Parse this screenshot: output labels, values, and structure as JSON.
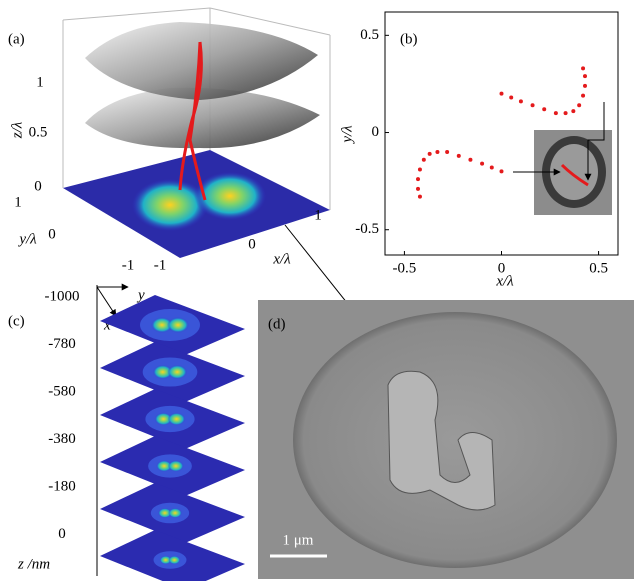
{
  "panel_a": {
    "label": "(a)",
    "zticks": [
      0,
      0.5,
      1
    ],
    "yticks": [
      1,
      0,
      -1
    ],
    "xticks": [
      -1,
      0,
      1
    ],
    "zlabel": "z/λ",
    "ylabel": "y/λ",
    "xlabel": "x/λ"
  },
  "chart_data": {
    "type": "scatter",
    "label": "(b)",
    "xlabel": "x/λ",
    "ylabel": "y/λ",
    "color": "#e41a1c",
    "xlim": [
      -0.6,
      0.6
    ],
    "ylim": [
      -0.63,
      0.62
    ],
    "xticks": [
      -0.5,
      0,
      0.5
    ],
    "yticks": [
      -0.5,
      0,
      0.5
    ],
    "x": [
      -0.42,
      -0.43,
      -0.43,
      -0.42,
      -0.4,
      -0.37,
      -0.33,
      -0.28,
      -0.22,
      -0.16,
      -0.1,
      -0.05,
      0,
      0,
      0.05,
      0.1,
      0.16,
      0.22,
      0.28,
      0.33,
      0.37,
      0.4,
      0.42,
      0.43,
      0.43,
      0.42
    ],
    "y": [
      -0.33,
      -0.29,
      -0.24,
      -0.19,
      -0.14,
      -0.11,
      -0.1,
      -0.1,
      -0.12,
      -0.14,
      -0.16,
      -0.18,
      -0.2,
      0.2,
      0.18,
      0.16,
      0.14,
      0.12,
      0.1,
      0.1,
      0.11,
      0.14,
      0.19,
      0.24,
      0.29,
      0.33
    ]
  },
  "panel_c": {
    "label": "(c)",
    "ticks": [
      -1000,
      -780,
      -580,
      -380,
      -180,
      0
    ],
    "axis_label": "z /nm",
    "x_label": "x",
    "y_label": "y"
  },
  "panel_d": {
    "label": "(d)",
    "scale_bar": "1 μm"
  }
}
